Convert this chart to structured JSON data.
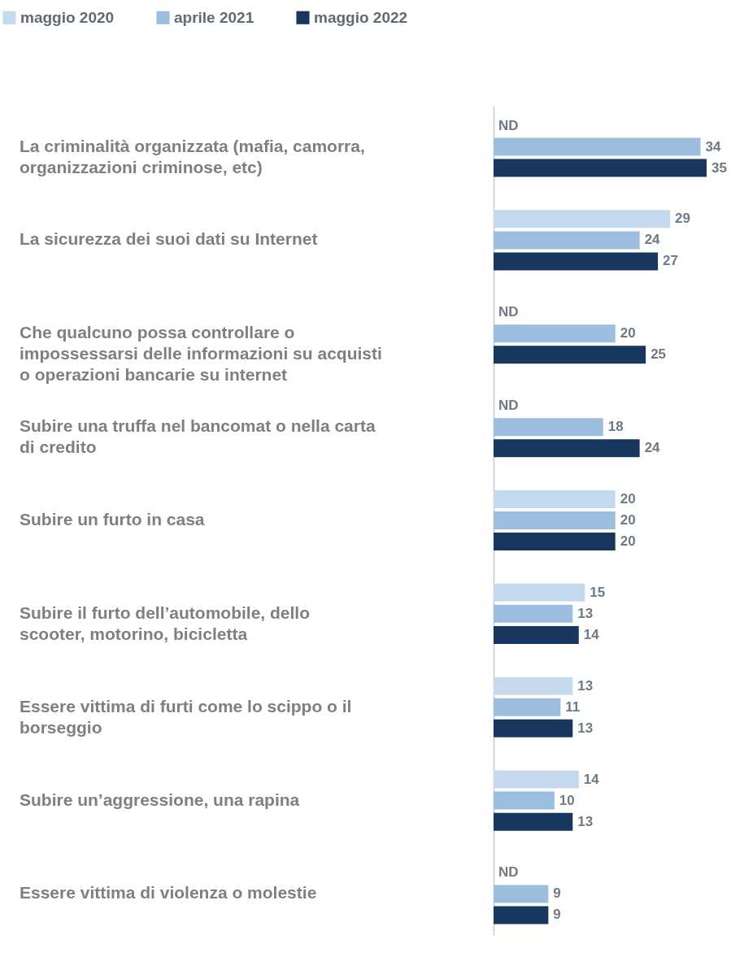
{
  "chart_data": {
    "type": "bar",
    "orientation": "horizontal",
    "legend": "top left",
    "categories": [
      "La criminalità organizzata (mafia, camorra, organizzazioni criminose, etc)",
      "La sicurezza dei suoi dati su Internet",
      "Che qualcuno possa controllare o impossessarsi delle informazioni su acquisti o operazioni bancarie su internet",
      "Subire una truffa nel bancomat o nella carta di credito",
      "Subire un furto in casa",
      "Subire il furto dell’automobile, dello scooter, motorino, bicicletta",
      "Essere vittima di furti come lo scippo o il borseggio",
      "Subire un’aggressione, una rapina",
      "Essere vittima di violenza o molestie"
    ],
    "series": [
      {
        "name": "maggio 2020",
        "color": "#c5d9ee",
        "values": [
          null,
          29,
          null,
          null,
          20,
          15,
          13,
          14,
          null
        ],
        "value_labels": [
          "ND",
          "29",
          "ND",
          "ND",
          "20",
          "15",
          "13",
          "14",
          "ND"
        ]
      },
      {
        "name": "aprile 2021",
        "color": "#9bbde0",
        "values": [
          34,
          24,
          20,
          18,
          20,
          13,
          11,
          10,
          9
        ],
        "value_labels": [
          "34",
          "24",
          "20",
          "18",
          "20",
          "13",
          "11",
          "10",
          "9"
        ]
      },
      {
        "name": "maggio 2022",
        "color": "#17375e",
        "values": [
          35,
          27,
          25,
          24,
          20,
          14,
          13,
          13,
          9
        ],
        "value_labels": [
          "35",
          "27",
          "25",
          "24",
          "20",
          "14",
          "13",
          "13",
          "9"
        ]
      }
    ]
  }
}
